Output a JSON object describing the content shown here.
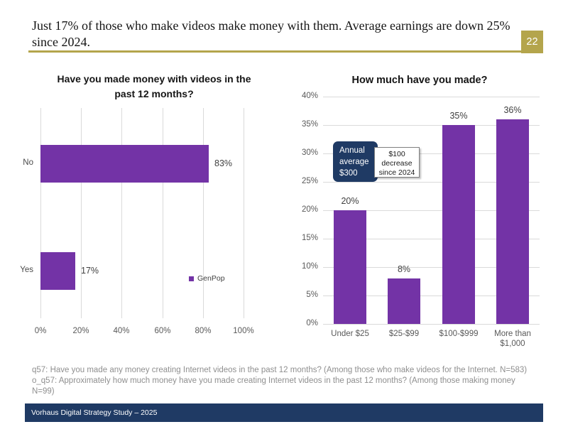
{
  "slide": {
    "title": "Just 17% of those who make videos make money with them. Average earnings are down 25% since 2024.",
    "page_number": "22",
    "footnote": "q57: Have you made any money creating Internet videos in the past 12 months? (Among those who make videos for the Internet. N=583) o_q57: Approximately how much money have you made creating Internet videos in the past 12 months? (Among those making money N=99)",
    "footer": "Vorhaus Digital Strategy Study – 2025"
  },
  "colors": {
    "purple": "#7333A6",
    "navy": "#1F3A64",
    "gold": "#B4A54C",
    "grid": "#DADADA",
    "tick": "#595959",
    "label": "#404040",
    "note": "#8F8F8F"
  },
  "chart_data": [
    {
      "type": "bar",
      "orientation": "horizontal",
      "title": "Have you made money with videos in the past 12 months?",
      "categories": [
        "No",
        "Yes"
      ],
      "values": [
        83,
        17
      ],
      "value_labels": [
        "83%",
        "17%"
      ],
      "xlim": [
        0,
        100
      ],
      "x_ticks": [
        "0%",
        "20%",
        "40%",
        "60%",
        "80%",
        "100%"
      ],
      "grid": true,
      "legend": [
        {
          "name": "GenPop",
          "color": "#7333A6"
        }
      ],
      "legend_position": "right-middle"
    },
    {
      "type": "bar",
      "orientation": "vertical",
      "title": "How much have you made?",
      "categories": [
        "Under $25",
        "$25-$99",
        "$100-$999",
        "More than $1,000"
      ],
      "values": [
        20,
        8,
        35,
        36
      ],
      "value_labels": [
        "20%",
        "8%",
        "35%",
        "36%"
      ],
      "ylim": [
        0,
        40
      ],
      "y_ticks": [
        "0%",
        "5%",
        "10%",
        "15%",
        "20%",
        "25%",
        "30%",
        "35%",
        "40%"
      ],
      "grid": true,
      "annotations": [
        {
          "text": "Annual average $300",
          "style": "navy-rounded"
        },
        {
          "text": "$100 decrease since 2024",
          "style": "white-box"
        }
      ]
    }
  ]
}
